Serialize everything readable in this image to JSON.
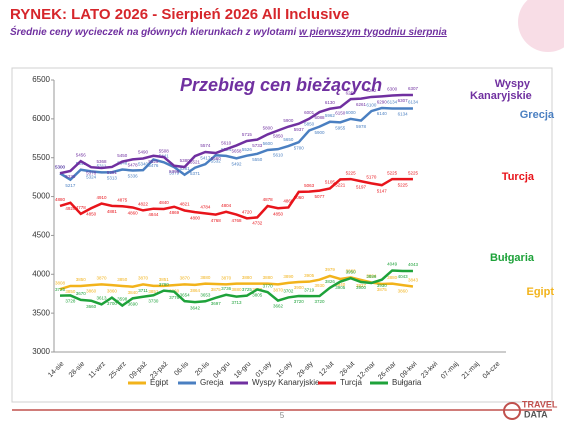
{
  "header": {
    "title": "RYNEK: LATO 2026 - Sierpień 2026 All Inclusive",
    "subtitle": "Średnie ceny wycieczek na głównych kierunkach  z wylotami",
    "subtitle_underlined": "w pierwszym tygodniu sierpnia"
  },
  "chart_data": {
    "type": "line",
    "title": "Przebieg cen bieżących",
    "categories": [
      "14-sie",
      null,
      "28-sie",
      null,
      "11-wrz",
      null,
      "25-wrz",
      null,
      "09-paź",
      null,
      "23-paź",
      null,
      "06-lis",
      null,
      "20-lis",
      null,
      "04-gru",
      null,
      "18-gru",
      null,
      "01-sty",
      null,
      "15-sty",
      null,
      "29-sty",
      null,
      "12-lut",
      null,
      "26-lut",
      null,
      "12-mar",
      null,
      "26-mar",
      null,
      "09-kwi",
      null,
      "23-kwi",
      null,
      "07-maj",
      null,
      "21-maj",
      null,
      "04-cze"
    ],
    "ylim": [
      3000,
      6500
    ],
    "yticks": [
      3000,
      3500,
      4000,
      4500,
      5000,
      5500,
      6000,
      6500
    ],
    "grid": false,
    "legend": "bottom",
    "series": [
      {
        "name": "Egipt",
        "color": "#f2b31b",
        "values": [
          3808,
          3850,
          3850,
          3860,
          3870,
          3860,
          3850,
          3840,
          3870,
          3851,
          3851,
          3860,
          3870,
          3864,
          3880,
          3875,
          3870,
          3880,
          3880,
          3880,
          3880,
          3870,
          3890,
          3900,
          3905,
          3930,
          3979,
          3940,
          3960,
          3927,
          3894,
          3875,
          3880,
          3860,
          3843,
          null,
          null,
          null,
          null,
          null,
          null,
          null,
          null
        ]
      },
      {
        "name": "Grecja",
        "color": "#4a7fc1",
        "values": [
          5300,
          5217,
          5345,
          5324,
          5311,
          5313,
          5348,
          5336,
          5340,
          5476,
          5441,
          5379,
          5281,
          5371,
          5417,
          5532,
          5524,
          5492,
          5526,
          5550,
          5600,
          5610,
          5650,
          5700,
          5850,
          5900,
          5962,
          5955,
          6000,
          5978,
          6100,
          6140,
          6134,
          6134,
          6134,
          null,
          null,
          null,
          null,
          null,
          null,
          null,
          null
        ]
      },
      {
        "name": "Wyspy Kanaryjskie",
        "color": "#7030a0",
        "values": [
          5300,
          5330,
          5456,
          5378,
          5368,
          5381,
          5450,
          5478,
          5490,
          5525,
          5508,
          5396,
          5380,
          5521,
          5574,
          5560,
          5610,
          5658,
          5715,
          5733,
          5800,
          5850,
          5900,
          5937,
          6001,
          6088,
          6130,
          6150,
          6254,
          6261,
          6282,
          6290,
          6300,
          6307,
          6307,
          null,
          null,
          null,
          null,
          null,
          null,
          null,
          null
        ]
      },
      {
        "name": "Turcja",
        "color": "#e8141b",
        "values": [
          4880,
          4920,
          4778,
          4850,
          4910,
          4881,
          4875,
          4860,
          4822,
          4844,
          4840,
          4869,
          4821,
          4800,
          4784,
          4768,
          4804,
          4768,
          4720,
          4732,
          4878,
          4850,
          4860,
          5060,
          5063,
          5077,
          5105,
          5221,
          5225,
          5197,
          5170,
          5147,
          5225,
          5225,
          5225,
          null,
          null,
          null,
          null,
          null,
          null,
          null,
          null
        ]
      },
      {
        "name": "Bułgaria",
        "color": "#1ea23a",
        "values": [
          3725,
          3728,
          3670,
          3660,
          3613,
          3700,
          3598,
          3690,
          3711,
          3730,
          3790,
          3776,
          3654,
          3642,
          3653,
          3697,
          3736,
          3713,
          3725,
          3805,
          3770,
          3662,
          3702,
          3720,
          3719,
          3720,
          3826,
          3905,
          3950,
          3900,
          3888,
          3930,
          4049,
          4043,
          4043,
          null,
          null,
          null,
          null,
          null,
          null,
          null,
          null
        ]
      }
    ]
  },
  "footer": {
    "page": "5",
    "logo_top": "TRAVEL",
    "logo_bottom": "DATA"
  }
}
